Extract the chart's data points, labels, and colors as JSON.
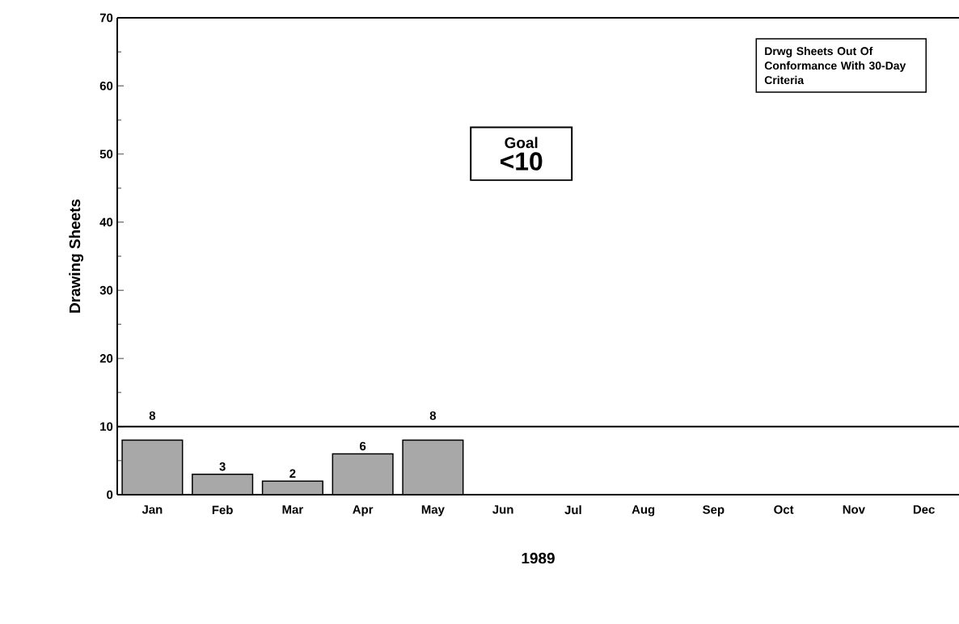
{
  "chart_data": {
    "type": "bar",
    "xlabel": "1989",
    "ylabel": "Drawing Sheets",
    "categories": [
      "Jan",
      "Feb",
      "Mar",
      "Apr",
      "May",
      "Jun",
      "Jul",
      "Aug",
      "Sep",
      "Oct",
      "Nov",
      "Dec"
    ],
    "values": [
      8,
      3,
      2,
      6,
      8,
      null,
      null,
      null,
      null,
      null,
      null,
      null
    ],
    "color": "#a8a8a8",
    "data_labels": true,
    "ylim": [
      0,
      70
    ],
    "yticks": [
      0,
      10,
      20,
      30,
      40,
      50,
      60,
      70
    ],
    "ref_lines": [
      {
        "axis": "y",
        "value": 10,
        "color": "#000000"
      }
    ],
    "annotations": [
      "Drwg Sheets Out Of Conformance With 30-Day Criteria",
      "Goal",
      "<10"
    ],
    "grid": false
  }
}
